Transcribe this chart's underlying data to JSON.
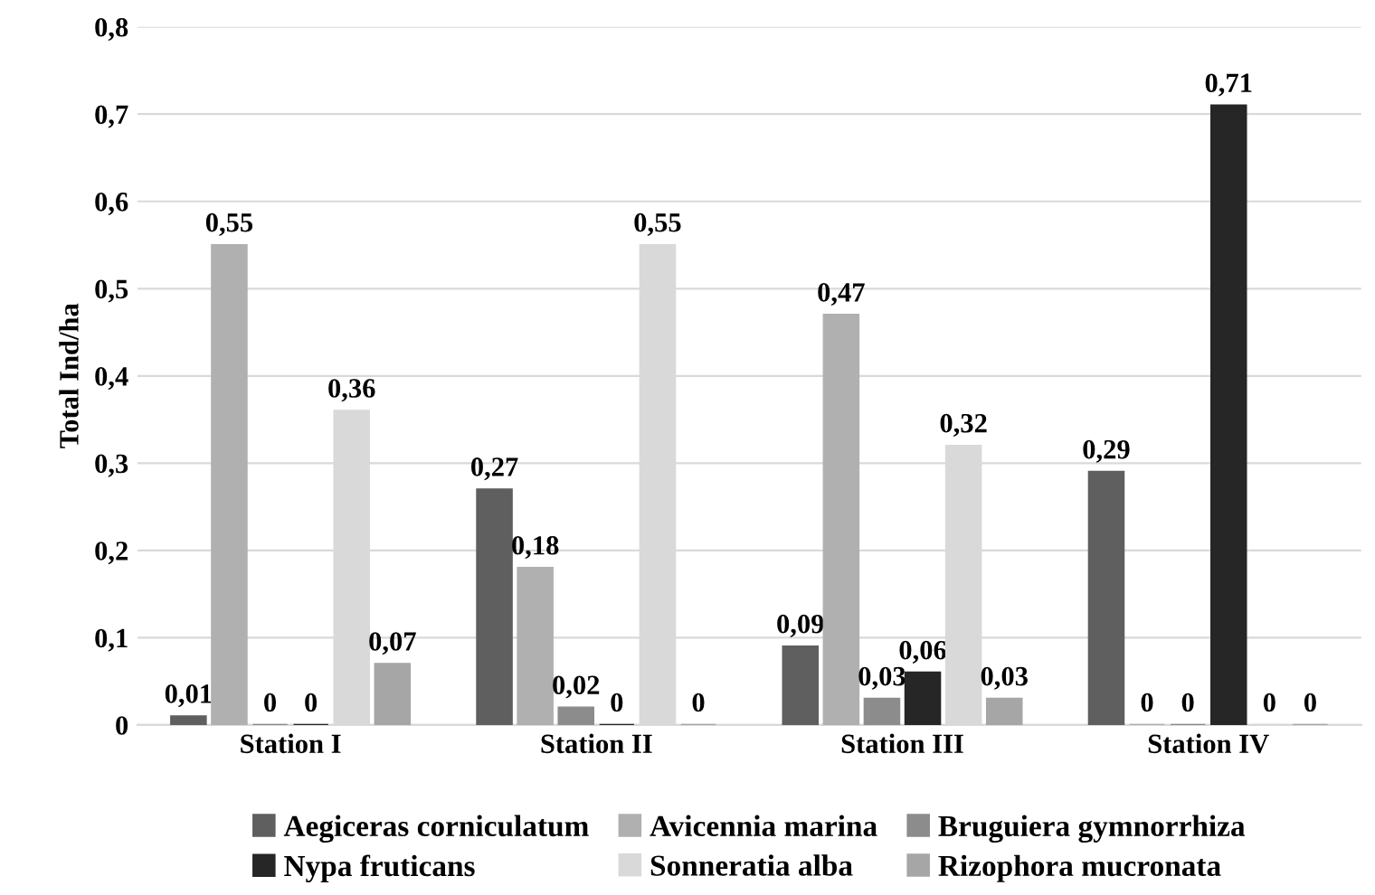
{
  "chart_data": {
    "type": "bar",
    "ylabel": "Total Ind/ha",
    "categories": [
      "Station I",
      "Station II",
      "Station III",
      "Station IV"
    ],
    "series": [
      {
        "name": "Aegiceras corniculatum",
        "color": "#5f5f5f",
        "values": [
          0.01,
          0.27,
          0.09,
          0.29
        ],
        "value_labels": [
          "0,01",
          "0,27",
          "0,09",
          "0,29"
        ]
      },
      {
        "name": "Avicennia marina",
        "color": "#b0b0b0",
        "values": [
          0.55,
          0.18,
          0.47,
          0
        ],
        "value_labels": [
          "0,55",
          "0,18",
          "0,47",
          "0"
        ]
      },
      {
        "name": "Bruguiera gymnorrhiza",
        "color": "#8c8c8c",
        "values": [
          0,
          0.02,
          0.03,
          0
        ],
        "value_labels": [
          "0",
          "0,02",
          "0,03",
          "0"
        ]
      },
      {
        "name": "Nypa fruticans",
        "color": "#262626",
        "values": [
          0,
          0,
          0.06,
          0.71
        ],
        "value_labels": [
          "0",
          "0",
          "0,06",
          "0,71"
        ]
      },
      {
        "name": "Sonneratia alba",
        "color": "#d9d9d9",
        "values": [
          0.36,
          0.55,
          0.32,
          0
        ],
        "value_labels": [
          "0,36",
          "0,55",
          "0,32",
          "0"
        ]
      },
      {
        "name": "Rizophora mucronata",
        "color": "#a6a6a6",
        "values": [
          0.07,
          0,
          0.03,
          0
        ],
        "value_labels": [
          "0,07",
          "0",
          "0,03",
          "0"
        ]
      }
    ],
    "ylim": [
      0,
      0.8
    ],
    "yticks": [
      {
        "value": 0,
        "label": "0"
      },
      {
        "value": 0.1,
        "label": "0,1"
      },
      {
        "value": 0.2,
        "label": "0,2"
      },
      {
        "value": 0.3,
        "label": "0,3"
      },
      {
        "value": 0.4,
        "label": "0,4"
      },
      {
        "value": 0.5,
        "label": "0,5"
      },
      {
        "value": 0.6,
        "label": "0,6"
      },
      {
        "value": 0.7,
        "label": "0,7"
      },
      {
        "value": 0.8,
        "label": "0,8"
      }
    ],
    "grid": "y",
    "legend": "bottom"
  }
}
